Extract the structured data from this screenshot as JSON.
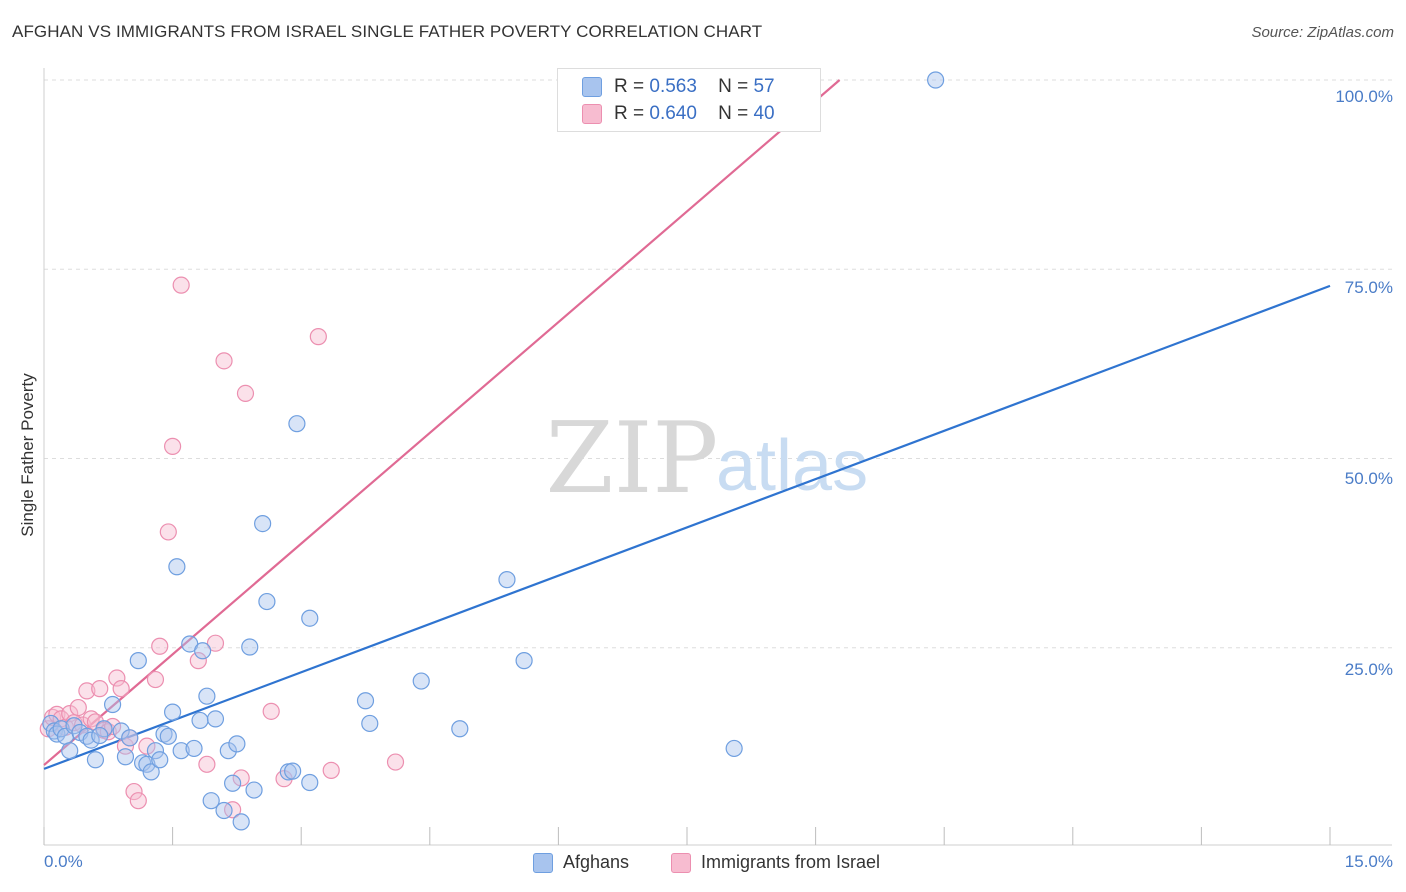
{
  "header": {
    "title": "AFGHAN VS IMMIGRANTS FROM ISRAEL SINGLE FATHER POVERTY CORRELATION CHART",
    "source": "Source: ZipAtlas.com"
  },
  "watermark": {
    "zip": "ZIP",
    "atlas": "atlas"
  },
  "colors": {
    "afghans_fill": "#a8c4ee",
    "afghans_stroke": "#6f9fe0",
    "afghans_line": "#2f74d0",
    "israel_fill": "#f7bcd0",
    "israel_stroke": "#ec8fb0",
    "israel_line": "#e06a94",
    "tick_text": "#4a7cc7",
    "grid": "#dddddd"
  },
  "legend": {
    "rows": [
      {
        "r_label": "R =",
        "r_value": "0.563",
        "n_label": "N =",
        "n_value": "57"
      },
      {
        "r_label": "R =",
        "r_value": "0.640",
        "n_label": "N =",
        "n_value": "40"
      }
    ]
  },
  "bottom_legend": {
    "afghans": "Afghans",
    "israel": "Immigrants from Israel"
  },
  "chart_data": {
    "type": "scatter",
    "title": "AFGHAN VS IMMIGRANTS FROM ISRAEL SINGLE FATHER POVERTY CORRELATION CHART",
    "xlabel": "",
    "ylabel": "Single Father Poverty",
    "xlim": [
      0,
      15
    ],
    "ylim": [
      0,
      100
    ],
    "x_tick_labels": [
      "0.0%",
      "15.0%"
    ],
    "y_tick_labels": [
      "25.0%",
      "50.0%",
      "75.0%",
      "100.0%"
    ],
    "y_tick_values": [
      25,
      50,
      75,
      100
    ],
    "series": [
      {
        "name": "Afghans",
        "r": 0.563,
        "n": 57,
        "trend": {
          "x": [
            0,
            15
          ],
          "y": [
            9.0,
            72.8
          ]
        },
        "points": [
          [
            0.08,
            15.0
          ],
          [
            0.12,
            14.0
          ],
          [
            0.15,
            13.6
          ],
          [
            0.2,
            14.3
          ],
          [
            0.25,
            13.3
          ],
          [
            0.3,
            11.4
          ],
          [
            0.35,
            14.7
          ],
          [
            0.42,
            13.8
          ],
          [
            0.5,
            13.3
          ],
          [
            0.55,
            12.8
          ],
          [
            0.6,
            10.2
          ],
          [
            0.7,
            14.3
          ],
          [
            0.8,
            17.5
          ],
          [
            0.9,
            14.0
          ],
          [
            0.95,
            10.6
          ],
          [
            1.0,
            13.1
          ],
          [
            1.1,
            23.3
          ],
          [
            1.15,
            9.8
          ],
          [
            1.2,
            9.6
          ],
          [
            1.25,
            8.6
          ],
          [
            1.3,
            11.4
          ],
          [
            1.35,
            10.2
          ],
          [
            1.4,
            13.6
          ],
          [
            1.45,
            13.3
          ],
          [
            1.5,
            16.5
          ],
          [
            1.6,
            11.4
          ],
          [
            1.7,
            25.5
          ],
          [
            1.75,
            11.7
          ],
          [
            1.82,
            15.4
          ],
          [
            1.9,
            18.6
          ],
          [
            1.95,
            4.8
          ],
          [
            2.0,
            15.6
          ],
          [
            2.1,
            3.5
          ],
          [
            2.15,
            11.4
          ],
          [
            2.2,
            7.1
          ],
          [
            2.25,
            12.3
          ],
          [
            2.3,
            2.0
          ],
          [
            2.4,
            25.1
          ],
          [
            2.45,
            6.2
          ],
          [
            2.55,
            41.4
          ],
          [
            2.6,
            31.1
          ],
          [
            2.85,
            8.6
          ],
          [
            2.9,
            8.7
          ],
          [
            2.95,
            54.6
          ],
          [
            3.1,
            7.2
          ],
          [
            3.1,
            28.9
          ],
          [
            3.75,
            18.0
          ],
          [
            3.8,
            15.0
          ],
          [
            4.4,
            20.6
          ],
          [
            4.85,
            14.3
          ],
          [
            5.4,
            34.0
          ],
          [
            5.6,
            23.3
          ],
          [
            8.05,
            11.7
          ],
          [
            10.4,
            100.0
          ],
          [
            0.65,
            13.4
          ],
          [
            1.55,
            35.7
          ],
          [
            1.85,
            24.6
          ]
        ]
      },
      {
        "name": "Immigrants from Israel",
        "r": 0.64,
        "n": 40,
        "trend": {
          "x": [
            0,
            9.28
          ],
          "y": [
            9.5,
            100
          ]
        },
        "points": [
          [
            0.05,
            14.3
          ],
          [
            0.1,
            15.8
          ],
          [
            0.15,
            16.2
          ],
          [
            0.2,
            15.6
          ],
          [
            0.25,
            14.5
          ],
          [
            0.3,
            16.3
          ],
          [
            0.35,
            15.1
          ],
          [
            0.4,
            17.1
          ],
          [
            0.45,
            14.8
          ],
          [
            0.5,
            19.3
          ],
          [
            0.55,
            15.6
          ],
          [
            0.6,
            15.2
          ],
          [
            0.65,
            19.6
          ],
          [
            0.7,
            14.1
          ],
          [
            0.75,
            13.9
          ],
          [
            0.8,
            14.6
          ],
          [
            0.85,
            21.0
          ],
          [
            0.9,
            19.6
          ],
          [
            0.95,
            12.0
          ],
          [
            1.0,
            13.1
          ],
          [
            1.05,
            6.0
          ],
          [
            1.1,
            4.8
          ],
          [
            1.2,
            12.0
          ],
          [
            1.3,
            20.8
          ],
          [
            1.35,
            25.2
          ],
          [
            1.45,
            40.3
          ],
          [
            1.5,
            51.6
          ],
          [
            1.6,
            72.9
          ],
          [
            1.8,
            23.3
          ],
          [
            1.9,
            9.6
          ],
          [
            2.0,
            25.6
          ],
          [
            2.1,
            62.9
          ],
          [
            2.2,
            3.6
          ],
          [
            2.3,
            7.8
          ],
          [
            2.35,
            58.6
          ],
          [
            2.65,
            16.6
          ],
          [
            2.8,
            7.7
          ],
          [
            3.2,
            66.1
          ],
          [
            3.35,
            8.8
          ],
          [
            4.1,
            9.9
          ]
        ]
      }
    ]
  }
}
